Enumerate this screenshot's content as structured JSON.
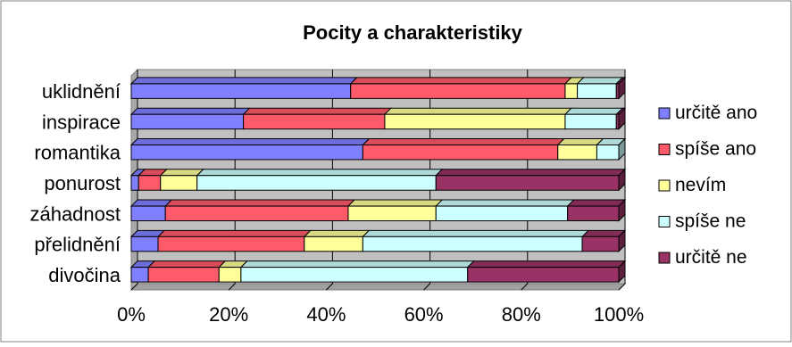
{
  "chart_data": {
    "type": "bar",
    "orientation": "horizontal",
    "stacked": "percent",
    "title": "Pocity a charakteristiky",
    "categories": [
      "uklidnění",
      "inspirace",
      "romantika",
      "ponurost",
      "záhadnost",
      "přelidnění",
      "divočina"
    ],
    "series": [
      {
        "name": "určitě ano",
        "color": "#8080ff",
        "values": [
          45,
          23,
          47.5,
          1.5,
          7,
          5.5,
          3.5
        ]
      },
      {
        "name": "spíše ano",
        "color": "#ff5a6a",
        "values": [
          44,
          29,
          40,
          4.5,
          37.5,
          30,
          14.5
        ]
      },
      {
        "name": "nevím",
        "color": "#ffff99",
        "values": [
          2.5,
          37,
          8,
          7.5,
          18,
          12,
          4.5
        ]
      },
      {
        "name": "spíše ne",
        "color": "#ccffff",
        "values": [
          8,
          10.5,
          4.5,
          49,
          27,
          45,
          46.5
        ]
      },
      {
        "name": "určitě ne",
        "color": "#993366",
        "values": [
          0.5,
          0.5,
          0,
          37.5,
          10.5,
          7.5,
          31
        ]
      }
    ],
    "xlim": [
      0,
      100
    ],
    "xticks": [
      "0%",
      "20%",
      "40%",
      "60%",
      "80%",
      "100%"
    ],
    "grid": true,
    "legend_position": "right"
  }
}
